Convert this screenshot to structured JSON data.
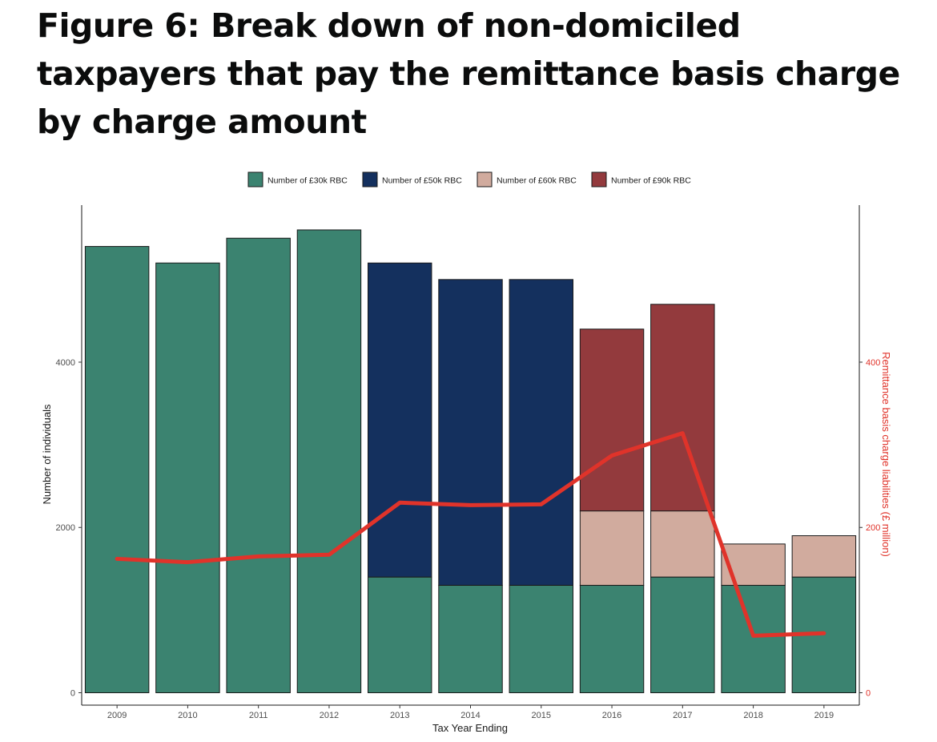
{
  "title": "Figure 6: Break down of non-domiciled taxpayers that pay the remittance basis charge by charge amount",
  "chart_data": {
    "type": "bar",
    "stacked": true,
    "categories": [
      "2009",
      "2010",
      "2011",
      "2012",
      "2013",
      "2014",
      "2015",
      "2016",
      "2017",
      "2018",
      "2019"
    ],
    "xlabel": "Tax Year Ending",
    "ylabel": "Number of individuals",
    "ylim": [
      -150,
      5900
    ],
    "yticks": [
      0,
      2000,
      4000
    ],
    "series": [
      {
        "name": "Number of £30k RBC",
        "color": "#3b8370",
        "values": [
          5400,
          5200,
          5500,
          5600,
          1400,
          1300,
          1300,
          1300,
          1400,
          1300,
          1400
        ]
      },
      {
        "name": "Number of £50k RBC",
        "color": "#14305e",
        "values": [
          0,
          0,
          0,
          0,
          3800,
          3700,
          3700,
          0,
          0,
          0,
          0
        ]
      },
      {
        "name": "Number of £60k RBC",
        "color": "#d1ab9e",
        "values": [
          0,
          0,
          0,
          0,
          0,
          0,
          0,
          900,
          800,
          500,
          500
        ]
      },
      {
        "name": "Number of £90k RBC",
        "color": "#933a3d",
        "values": [
          0,
          0,
          0,
          0,
          0,
          0,
          0,
          2200,
          2500,
          0,
          0
        ]
      }
    ],
    "secondary_axis": {
      "type": "line",
      "label": "Remittance basis charge liabilities (£ million)",
      "color": "#e0332a",
      "ylim": [
        -15,
        590
      ],
      "yticks": [
        0,
        200,
        400
      ],
      "values": [
        162,
        158,
        165,
        167,
        230,
        227,
        228,
        287,
        314,
        69,
        72
      ]
    },
    "legend_position": "top",
    "grid": false
  }
}
